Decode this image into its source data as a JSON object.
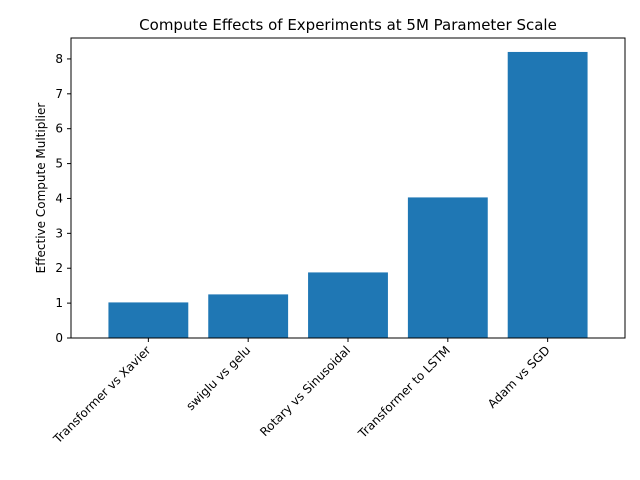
{
  "chart_data": {
    "type": "bar",
    "title": "Compute Effects of Experiments at 5M Parameter Scale",
    "xlabel": "",
    "ylabel": "Effective Compute Multiplier",
    "categories": [
      "Transformer vs Xavier",
      "swiglu vs gelu",
      "Rotary vs Sinusoidal",
      "Transformer to LSTM",
      "Adam vs SGD"
    ],
    "values": [
      1.02,
      1.25,
      1.88,
      4.03,
      8.2
    ],
    "ylim": [
      0,
      8.6
    ],
    "yticks": [
      0,
      1,
      2,
      3,
      4,
      5,
      6,
      7,
      8
    ],
    "grid": false,
    "bar_color": "#1f77b4"
  }
}
